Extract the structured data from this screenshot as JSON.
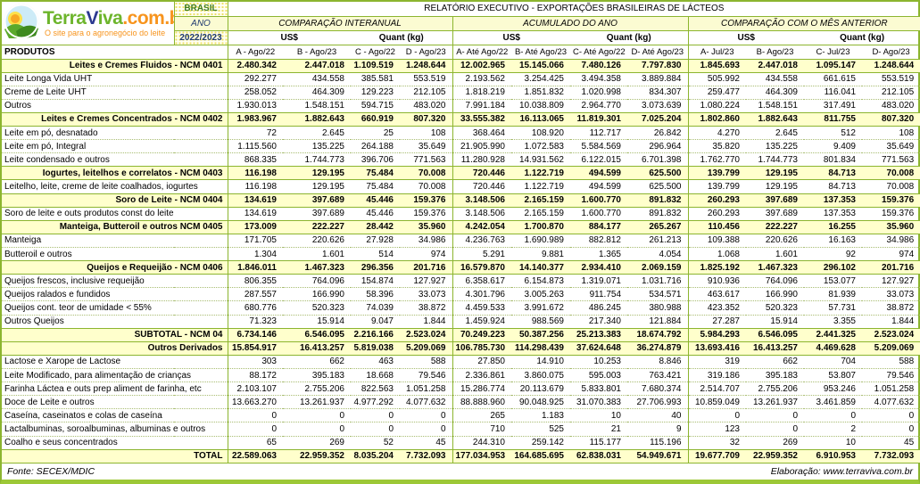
{
  "logo": {
    "brand_terra": "Terra",
    "brand_v": "V",
    "brand_iva": "iva",
    "brand_suffix": ".com.br",
    "tagline": "O site para o agronegócio do leite"
  },
  "header": {
    "country": "BRASIL",
    "report_title": "RELATÓRIO EXECUTIVO - EXPORTAÇÕES BRASILEIRAS DE LÁCTEOS",
    "ano_label": "ANO",
    "ano_value": "2022/2023",
    "produtos_label": "PRODUTOS",
    "sections": [
      {
        "label": "COMPARAÇÃO INTERANUAL",
        "unit_groups": [
          "US$",
          "Quant (kg)"
        ],
        "columns": [
          "A - Ago/22",
          "B - Ago/23",
          "C - Ago/22",
          "D - Ago/23"
        ]
      },
      {
        "label": "ACUMULADO DO ANO",
        "unit_groups": [
          "US$",
          "Quant (kg)"
        ],
        "columns": [
          "A- Até Ago/22",
          "B- Até Ago/23",
          "C- Até Ago/22",
          "D- Até Ago/23"
        ]
      },
      {
        "label": "COMPARAÇÃO COM O MÊS ANTERIOR",
        "unit_groups": [
          "US$",
          "Quant (kg)"
        ],
        "columns": [
          "A- Jul/23",
          "B- Ago/23",
          "C- Jul/23",
          "D- Ago/23"
        ]
      }
    ]
  },
  "rows": [
    {
      "label": "Leites e Cremes Fluidos  - NCM 0401",
      "type": "cat",
      "values": [
        "2.480.342",
        "2.447.018",
        "1.109.519",
        "1.248.644",
        "12.002.965",
        "15.145.066",
        "7.480.126",
        "7.797.830",
        "1.845.693",
        "2.447.018",
        "1.095.147",
        "1.248.644"
      ]
    },
    {
      "label": "Leite Longa Vida UHT",
      "type": "item",
      "values": [
        "292.277",
        "434.558",
        "385.581",
        "553.519",
        "2.193.562",
        "3.254.425",
        "3.494.358",
        "3.889.884",
        "505.992",
        "434.558",
        "661.615",
        "553.519"
      ]
    },
    {
      "label": "Creme de Leite UHT",
      "type": "item",
      "values": [
        "258.052",
        "464.309",
        "129.223",
        "212.105",
        "1.818.219",
        "1.851.832",
        "1.020.998",
        "834.307",
        "259.477",
        "464.309",
        "116.041",
        "212.105"
      ]
    },
    {
      "label": "Outros",
      "type": "item",
      "values": [
        "1.930.013",
        "1.548.151",
        "594.715",
        "483.020",
        "7.991.184",
        "10.038.809",
        "2.964.770",
        "3.073.639",
        "1.080.224",
        "1.548.151",
        "317.491",
        "483.020"
      ]
    },
    {
      "label": "Leites e Cremes Concentrados  - NCM 0402",
      "type": "cat",
      "values": [
        "1.983.967",
        "1.882.643",
        "660.919",
        "807.320",
        "33.555.382",
        "16.113.065",
        "11.819.301",
        "7.025.204",
        "1.802.860",
        "1.882.643",
        "811.755",
        "807.320"
      ]
    },
    {
      "label": "Leite em pó, desnatado",
      "type": "item",
      "values": [
        "72",
        "2.645",
        "25",
        "108",
        "368.464",
        "108.920",
        "112.717",
        "26.842",
        "4.270",
        "2.645",
        "512",
        "108"
      ]
    },
    {
      "label": "Leite em pó, Integral",
      "type": "item",
      "values": [
        "1.115.560",
        "135.225",
        "264.188",
        "35.649",
        "21.905.990",
        "1.072.583",
        "5.584.569",
        "296.964",
        "35.820",
        "135.225",
        "9.409",
        "35.649"
      ]
    },
    {
      "label": "Leite condensado e outros",
      "type": "item",
      "values": [
        "868.335",
        "1.744.773",
        "396.706",
        "771.563",
        "11.280.928",
        "14.931.562",
        "6.122.015",
        "6.701.398",
        "1.762.770",
        "1.744.773",
        "801.834",
        "771.563"
      ]
    },
    {
      "label": "Iogurtes, leitelhos e correlatos  - NCM 0403",
      "type": "cat",
      "values": [
        "116.198",
        "129.195",
        "75.484",
        "70.008",
        "720.446",
        "1.122.719",
        "494.599",
        "625.500",
        "139.799",
        "129.195",
        "84.713",
        "70.008"
      ]
    },
    {
      "label": "Leitelho, leite, creme de leite coalhados, iogurtes",
      "type": "item",
      "values": [
        "116.198",
        "129.195",
        "75.484",
        "70.008",
        "720.446",
        "1.122.719",
        "494.599",
        "625.500",
        "139.799",
        "129.195",
        "84.713",
        "70.008"
      ]
    },
    {
      "label": "Soro de Leite  - NCM 0404",
      "type": "cat",
      "values": [
        "134.619",
        "397.689",
        "45.446",
        "159.376",
        "3.148.506",
        "2.165.159",
        "1.600.770",
        "891.832",
        "260.293",
        "397.689",
        "137.353",
        "159.376"
      ]
    },
    {
      "label": "Soro de leite e outs produtos const do leite",
      "type": "item",
      "values": [
        "134.619",
        "397.689",
        "45.446",
        "159.376",
        "3.148.506",
        "2.165.159",
        "1.600.770",
        "891.832",
        "260.293",
        "397.689",
        "137.353",
        "159.376"
      ]
    },
    {
      "label": "Manteiga, Butteroil e outros  NCM 0405",
      "type": "cat",
      "values": [
        "173.009",
        "222.227",
        "28.442",
        "35.960",
        "4.242.054",
        "1.700.870",
        "884.177",
        "265.267",
        "110.456",
        "222.227",
        "16.255",
        "35.960"
      ]
    },
    {
      "label": "Manteiga",
      "type": "item",
      "values": [
        "171.705",
        "220.626",
        "27.928",
        "34.986",
        "4.236.763",
        "1.690.989",
        "882.812",
        "261.213",
        "109.388",
        "220.626",
        "16.163",
        "34.986"
      ]
    },
    {
      "label": "Butteroil e outros",
      "type": "item",
      "values": [
        "1.304",
        "1.601",
        "514",
        "974",
        "5.291",
        "9.881",
        "1.365",
        "4.054",
        "1.068",
        "1.601",
        "92",
        "974"
      ]
    },
    {
      "label": "Queijos e Requeijão - NCM 0406",
      "type": "cat",
      "values": [
        "1.846.011",
        "1.467.323",
        "296.356",
        "201.716",
        "16.579.870",
        "14.140.377",
        "2.934.410",
        "2.069.159",
        "1.825.192",
        "1.467.323",
        "296.102",
        "201.716"
      ]
    },
    {
      "label": "Queijos frescos, inclusive requeijão",
      "type": "item",
      "values": [
        "806.355",
        "764.096",
        "154.874",
        "127.927",
        "6.358.617",
        "6.154.873",
        "1.319.071",
        "1.031.716",
        "910.936",
        "764.096",
        "153.077",
        "127.927"
      ]
    },
    {
      "label": "Queijos ralados e fundidos",
      "type": "item",
      "values": [
        "287.557",
        "166.990",
        "58.396",
        "33.073",
        "4.301.796",
        "3.005.263",
        "911.754",
        "534.571",
        "463.617",
        "166.990",
        "81.939",
        "33.073"
      ]
    },
    {
      "label": "Queijos cont. teor de umidade < 55%",
      "type": "item",
      "values": [
        "680.776",
        "520.323",
        "74.039",
        "38.872",
        "4.459.533",
        "3.991.672",
        "486.245",
        "380.988",
        "423.352",
        "520.323",
        "57.731",
        "38.872"
      ]
    },
    {
      "label": "Outros Queijos",
      "type": "item",
      "values": [
        "71.323",
        "15.914",
        "9.047",
        "1.844",
        "1.459.924",
        "988.569",
        "217.340",
        "121.884",
        "27.287",
        "15.914",
        "3.355",
        "1.844"
      ]
    },
    {
      "label": "SUBTOTAL - NCM 04",
      "type": "subtotal",
      "values": [
        "6.734.146",
        "6.546.095",
        "2.216.166",
        "2.523.024",
        "70.249.223",
        "50.387.256",
        "25.213.383",
        "18.674.792",
        "5.984.293",
        "6.546.095",
        "2.441.325",
        "2.523.024"
      ]
    },
    {
      "label": "Outros Derivados",
      "type": "cat",
      "values": [
        "15.854.917",
        "16.413.257",
        "5.819.038",
        "5.209.069",
        "106.785.730",
        "114.298.439",
        "37.624.648",
        "36.274.879",
        "13.693.416",
        "16.413.257",
        "4.469.628",
        "5.209.069"
      ]
    },
    {
      "label": "Lactose e Xarope de Lactose",
      "type": "item",
      "values": [
        "303",
        "662",
        "463",
        "588",
        "27.850",
        "14.910",
        "10.253",
        "8.846",
        "319",
        "662",
        "704",
        "588"
      ]
    },
    {
      "label": "Leite Modificado, para alimentação de crianças",
      "type": "item",
      "values": [
        "88.172",
        "395.183",
        "18.668",
        "79.546",
        "2.336.861",
        "3.860.075",
        "595.003",
        "763.421",
        "319.186",
        "395.183",
        "53.807",
        "79.546"
      ]
    },
    {
      "label": "Farinha Láctea e outs prep aliment de farinha, etc",
      "type": "item",
      "values": [
        "2.103.107",
        "2.755.206",
        "822.563",
        "1.051.258",
        "15.286.774",
        "20.113.679",
        "5.833.801",
        "7.680.374",
        "2.514.707",
        "2.755.206",
        "953.246",
        "1.051.258"
      ]
    },
    {
      "label": "Doce de Leite e outros",
      "type": "item",
      "values": [
        "13.663.270",
        "13.261.937",
        "4.977.292",
        "4.077.632",
        "88.888.960",
        "90.048.925",
        "31.070.383",
        "27.706.993",
        "10.859.049",
        "13.261.937",
        "3.461.859",
        "4.077.632"
      ]
    },
    {
      "label": "Caseína, caseinatos e colas de caseína",
      "type": "item",
      "values": [
        "0",
        "0",
        "0",
        "0",
        "265",
        "1.183",
        "10",
        "40",
        "0",
        "0",
        "0",
        "0"
      ]
    },
    {
      "label": "Lactalbuminas, soroalbuminas, albuminas e outros",
      "type": "item",
      "values": [
        "0",
        "0",
        "0",
        "0",
        "710",
        "525",
        "21",
        "9",
        "123",
        "0",
        "2",
        "0"
      ]
    },
    {
      "label": "Coalho e seus concentrados",
      "type": "item",
      "values": [
        "65",
        "269",
        "52",
        "45",
        "244.310",
        "259.142",
        "115.177",
        "115.196",
        "32",
        "269",
        "10",
        "45"
      ]
    },
    {
      "label": "TOTAL",
      "type": "total",
      "values": [
        "22.589.063",
        "22.959.352",
        "8.035.204",
        "7.732.093",
        "177.034.953",
        "164.685.695",
        "62.838.031",
        "54.949.671",
        "19.677.709",
        "22.959.352",
        "6.910.953",
        "7.732.093"
      ]
    }
  ],
  "footer": {
    "source": "Fonte: SECEX/MDIC",
    "elaboration": "Elaboração: www.terraviva.com.br"
  },
  "colors": {
    "grid_green": "#8CB52F",
    "outer_green": "#9CC837",
    "category_yellow": "#FFFFCC",
    "band_yellow": "#FBFBD2",
    "navy": "#1F3A70",
    "dark_green_text": "#3F7D23",
    "brand_green": "#6DB52C",
    "brand_blue": "#2B3990",
    "brand_orange": "#F7941D"
  }
}
